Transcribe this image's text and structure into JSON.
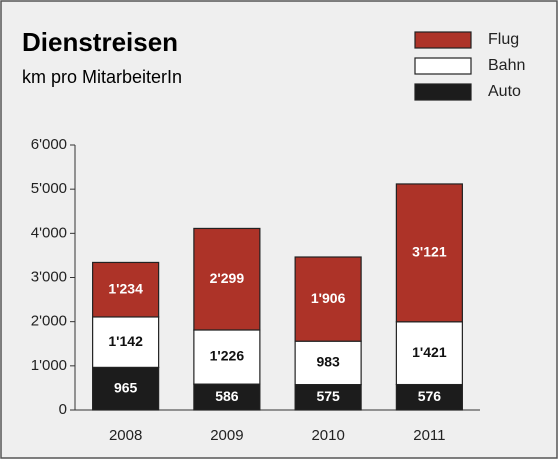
{
  "chart_data": {
    "type": "stacked_bar",
    "title": "Dienstreisen",
    "subtitle": "km pro MitarbeiterIn",
    "categories": [
      "2008",
      "2009",
      "2010",
      "2011"
    ],
    "series": [
      {
        "name": "Auto",
        "color": "#1c1c1c",
        "values": [
          965,
          586,
          575,
          576
        ],
        "value_labels": [
          "965",
          "586",
          "575",
          "576"
        ]
      },
      {
        "name": "Bahn",
        "color": "#ffffff",
        "values": [
          1142,
          1226,
          983,
          1421
        ],
        "value_labels": [
          "1'142",
          "1'226",
          "983",
          "1'421"
        ]
      },
      {
        "name": "Flug",
        "color": "#ad3328",
        "values": [
          1234,
          2299,
          1906,
          3121
        ],
        "value_labels": [
          "1'234",
          "2'299",
          "1'906",
          "3'121"
        ]
      }
    ],
    "ylim": [
      0,
      6000
    ],
    "yticks": [
      0,
      {
        "value": 1000,
        "label": "1'000"
      },
      {
        "value": 2000,
        "label": "2'000"
      },
      {
        "value": 3000,
        "label": "3'000"
      },
      {
        "value": 4000,
        "label": "4'000"
      },
      {
        "value": 5000,
        "label": "5'000"
      },
      {
        "value": 6000,
        "label": "6'000"
      }
    ]
  }
}
